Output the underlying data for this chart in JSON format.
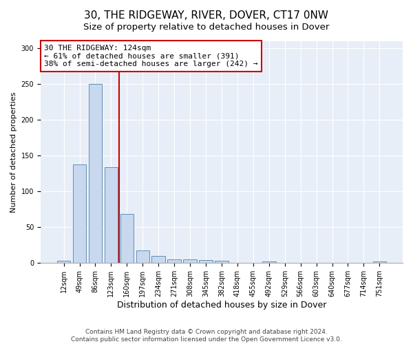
{
  "title1": "30, THE RIDGEWAY, RIVER, DOVER, CT17 0NW",
  "title2": "Size of property relative to detached houses in Dover",
  "xlabel": "Distribution of detached houses by size in Dover",
  "ylabel": "Number of detached properties",
  "categories": [
    "12sqm",
    "49sqm",
    "86sqm",
    "123sqm",
    "160sqm",
    "197sqm",
    "234sqm",
    "271sqm",
    "308sqm",
    "345sqm",
    "382sqm",
    "418sqm",
    "455sqm",
    "492sqm",
    "529sqm",
    "566sqm",
    "603sqm",
    "640sqm",
    "677sqm",
    "714sqm",
    "751sqm"
  ],
  "bar_values": [
    3,
    138,
    250,
    134,
    69,
    18,
    10,
    5,
    5,
    4,
    3,
    0,
    0,
    2,
    0,
    0,
    0,
    0,
    0,
    0,
    2
  ],
  "bar_color": "#c8d8ee",
  "bar_edgecolor": "#6090b8",
  "marker_after_index": 3,
  "marker_color": "#cc0000",
  "annotation_line1": "30 THE RIDGEWAY: 124sqm",
  "annotation_line2": "← 61% of detached houses are smaller (391)",
  "annotation_line3": "38% of semi-detached houses are larger (242) →",
  "annotation_box_edgecolor": "#cc0000",
  "annotation_box_facecolor": "#ffffff",
  "ylim": [
    0,
    310
  ],
  "yticks": [
    0,
    50,
    100,
    150,
    200,
    250,
    300
  ],
  "background_color": "#e8eef8",
  "footer1": "Contains HM Land Registry data © Crown copyright and database right 2024.",
  "footer2": "Contains public sector information licensed under the Open Government Licence v3.0.",
  "title_fontsize": 11,
  "subtitle_fontsize": 9.5,
  "xlabel_fontsize": 9,
  "ylabel_fontsize": 8,
  "tick_fontsize": 7,
  "annotation_fontsize": 8,
  "footer_fontsize": 6.5
}
